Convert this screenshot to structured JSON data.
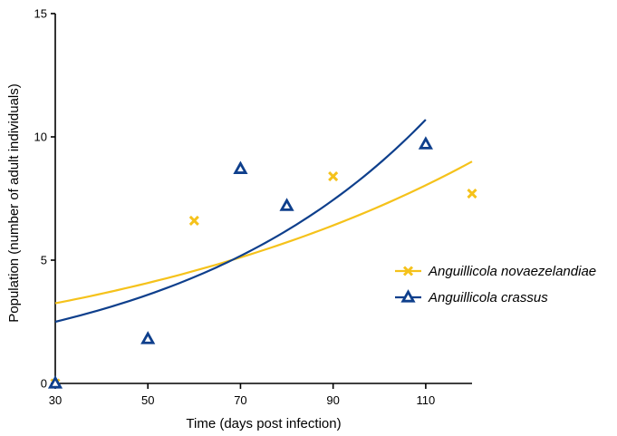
{
  "chart_data": {
    "type": "scatter",
    "title": "",
    "xlabel": "Time (days post infection)",
    "ylabel": "Population (number of adult individuals)",
    "xlim": [
      30,
      120
    ],
    "ylim": [
      0,
      15
    ],
    "xticks": [
      30,
      50,
      70,
      90,
      110
    ],
    "yticks": [
      0,
      5,
      10,
      15
    ],
    "grid": false,
    "legend_position": "right",
    "series": [
      {
        "name": "Anguillicola novaezelandiae",
        "marker": "cross",
        "color": "#F5C21B",
        "points": [
          {
            "x": 30,
            "y": 0
          },
          {
            "x": 60,
            "y": 6.6
          },
          {
            "x": 90,
            "y": 8.4
          },
          {
            "x": 120,
            "y": 7.7
          }
        ],
        "fit": {
          "type": "exponential",
          "x_range": [
            30,
            120
          ],
          "y_start": 3.25,
          "y_end": 9.0
        }
      },
      {
        "name": "Anguillicola crassus",
        "marker": "triangle",
        "color": "#0E3F8C",
        "points": [
          {
            "x": 30,
            "y": 0
          },
          {
            "x": 50,
            "y": 1.8
          },
          {
            "x": 70,
            "y": 8.7
          },
          {
            "x": 80,
            "y": 7.2
          },
          {
            "x": 110,
            "y": 9.7
          }
        ],
        "fit": {
          "type": "exponential",
          "x_range": [
            30,
            110
          ],
          "y_start": 2.5,
          "y_end": 10.7
        }
      }
    ]
  }
}
